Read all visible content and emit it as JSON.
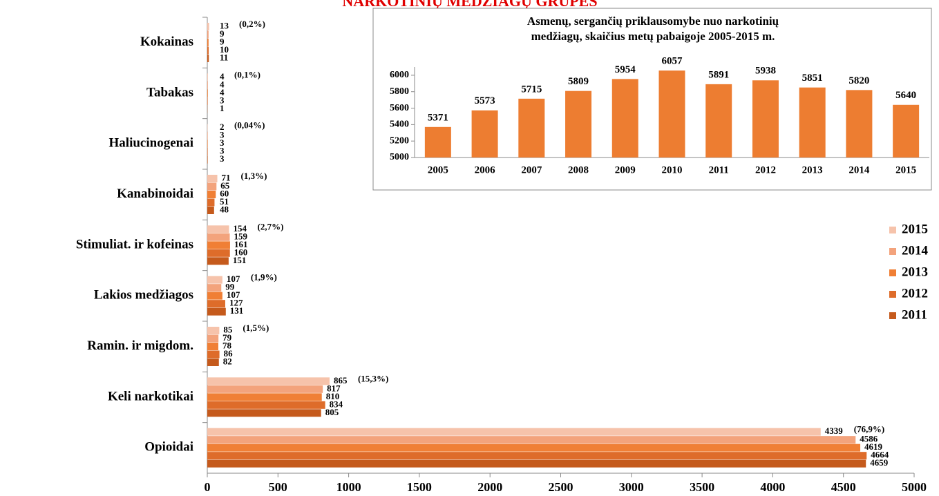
{
  "chart_data": [
    {
      "type": "bar",
      "orientation": "horizontal",
      "title": "NARKOTINIŲ MEDŽIAGŲ GRUPĖS",
      "categories": [
        "Kokainas",
        "Tabakas",
        "Haliucinogenai",
        "Kanabinoidai",
        "Stimuliat. ir kofeinas",
        "Lakios medžiagos",
        "Ramin. ir migdom.",
        "Keli  narkotikai",
        "Opioidai"
      ],
      "series": [
        {
          "name": "2015",
          "color": "#f6c3ab",
          "values": [
            13,
            4,
            2,
            71,
            154,
            107,
            85,
            865,
            4339
          ]
        },
        {
          "name": "2014",
          "color": "#f3a37c",
          "values": [
            9,
            4,
            3,
            65,
            159,
            99,
            79,
            817,
            4586
          ]
        },
        {
          "name": "2013",
          "color": "#f07f35",
          "values": [
            9,
            4,
            3,
            60,
            161,
            107,
            78,
            810,
            4619
          ]
        },
        {
          "name": "2012",
          "color": "#de6c2a",
          "values": [
            10,
            3,
            3,
            51,
            160,
            127,
            86,
            834,
            4664
          ]
        },
        {
          "name": "2011",
          "color": "#c55a1c",
          "values": [
            11,
            1,
            3,
            48,
            151,
            131,
            82,
            805,
            4659
          ]
        }
      ],
      "shares": [
        "(0,2%)",
        "(0,1%)",
        "(0,04%)",
        "(1,3%)",
        "(2,7%)",
        "(1,9%)",
        "(1,5%)",
        "(15,3%)",
        "(76,9%)"
      ],
      "xlim": [
        0,
        5000
      ],
      "xticks": [
        0,
        500,
        1000,
        1500,
        2000,
        2500,
        3000,
        3500,
        4000,
        4500,
        5000
      ],
      "legend": "right"
    },
    {
      "type": "bar",
      "title": [
        "Asmenų, sergančių priklausomybe nuo narkotinių",
        "medžiagų, skaičius metų pabaigoje 2005-2015 m."
      ],
      "categories": [
        "2005",
        "2006",
        "2007",
        "2008",
        "2009",
        "2010",
        "2011",
        "2012",
        "2013",
        "2014",
        "2015"
      ],
      "values": [
        5371,
        5573,
        5715,
        5809,
        5954,
        6057,
        5891,
        5938,
        5851,
        5820,
        5640
      ],
      "color": "#ed7d31",
      "ylim": [
        5000,
        6100
      ],
      "yticks": [
        5000,
        5200,
        5400,
        5600,
        5800,
        6000
      ]
    }
  ]
}
